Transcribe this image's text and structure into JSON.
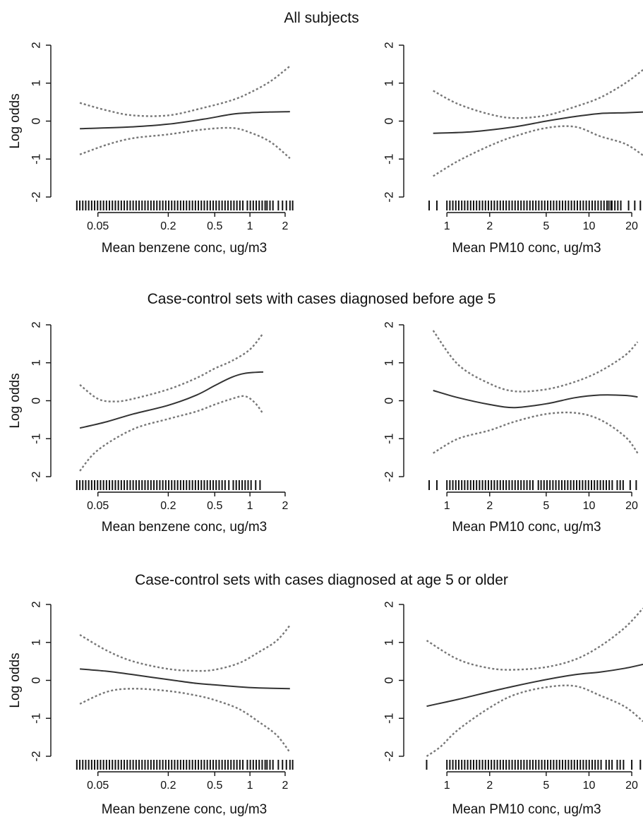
{
  "row_titles": [
    "All subjects",
    "Case-control sets with cases diagnosed before age 5",
    "Case-control sets with cases diagnosed at age 5 or older"
  ],
  "chart_data": [
    {
      "type": "line",
      "id": "p1",
      "xscale": "log",
      "xlim": [
        0.03,
        2.5
      ],
      "ylim": [
        -2,
        2
      ],
      "xlabel": "Mean benzene conc, ug/m3",
      "ylabel": "Log odds",
      "xticks": [
        0.05,
        0.2,
        0.5,
        1,
        2
      ],
      "xticklabels": [
        "0.05",
        "0.2",
        "0.5",
        "1",
        "2"
      ],
      "yticks": [
        -2,
        -1,
        0,
        1,
        2
      ],
      "yticklabels": [
        "-2",
        "-1",
        "0",
        "1",
        "2"
      ],
      "series": [
        {
          "role": "estimate",
          "x": [
            0.035,
            0.1,
            0.2,
            0.4,
            0.7,
            1.0,
            1.5,
            2.2
          ],
          "y": [
            -0.2,
            -0.15,
            -0.08,
            0.05,
            0.18,
            0.22,
            0.24,
            0.25
          ]
        },
        {
          "role": "upper",
          "x": [
            0.035,
            0.06,
            0.1,
            0.2,
            0.4,
            0.7,
            1.0,
            1.5,
            2.2
          ],
          "y": [
            0.48,
            0.28,
            0.15,
            0.15,
            0.35,
            0.55,
            0.75,
            1.05,
            1.45
          ]
        },
        {
          "role": "lower",
          "x": [
            0.035,
            0.06,
            0.1,
            0.2,
            0.4,
            0.7,
            1.0,
            1.5,
            2.2
          ],
          "y": [
            -0.88,
            -0.62,
            -0.45,
            -0.35,
            -0.22,
            -0.18,
            -0.3,
            -0.55,
            -0.98
          ]
        }
      ],
      "rug": {
        "segments": [
          [
            0.033,
            0.9
          ],
          [
            0.95,
            1.35
          ],
          [
            1.4,
            1.65
          ]
        ],
        "ticks": [
          1.75,
          1.9,
          2.05,
          2.2,
          2.32
        ]
      }
    },
    {
      "type": "line",
      "id": "p2",
      "xscale": "log",
      "xlim": [
        0.7,
        24
      ],
      "ylim": [
        -2,
        2
      ],
      "xlabel": "Mean PM10 conc, ug/m3",
      "ylabel": "",
      "xticks": [
        1,
        2,
        5,
        10,
        20
      ],
      "xticklabels": [
        "1",
        "2",
        "5",
        "10",
        "20"
      ],
      "yticks": [
        -2,
        -1,
        0,
        1,
        2
      ],
      "yticklabels": [
        "-2",
        "-1",
        "0",
        "1",
        "2"
      ],
      "series": [
        {
          "role": "estimate",
          "x": [
            0.8,
            1.5,
            3,
            5,
            8,
            12,
            18,
            24
          ],
          "y": [
            -0.32,
            -0.28,
            -0.15,
            0.0,
            0.12,
            0.2,
            0.22,
            0.24
          ]
        },
        {
          "role": "upper",
          "x": [
            0.8,
            1.2,
            2,
            3,
            5,
            8,
            12,
            18,
            24
          ],
          "y": [
            0.8,
            0.45,
            0.18,
            0.08,
            0.15,
            0.38,
            0.62,
            1.0,
            1.35
          ]
        },
        {
          "role": "lower",
          "x": [
            0.8,
            1.2,
            2,
            3,
            5,
            8,
            12,
            18,
            24
          ],
          "y": [
            -1.45,
            -1.05,
            -0.65,
            -0.4,
            -0.18,
            -0.15,
            -0.4,
            -0.6,
            -0.9
          ]
        }
      ],
      "rug": {
        "segments": [
          [
            1.0,
            13.5
          ],
          [
            14.5,
            17
          ]
        ],
        "ticks": [
          0.75,
          0.85,
          13.8,
          14.3,
          19,
          21,
          23
        ]
      }
    },
    {
      "type": "line",
      "id": "p3",
      "xscale": "log",
      "xlim": [
        0.03,
        2.5
      ],
      "ylim": [
        -2,
        2
      ],
      "xlabel": "Mean benzene conc, ug/m3",
      "ylabel": "Log odds",
      "xticks": [
        0.05,
        0.2,
        0.5,
        1,
        2
      ],
      "xticklabels": [
        "0.05",
        "0.2",
        "0.5",
        "1",
        "2"
      ],
      "yticks": [
        -2,
        -1,
        0,
        1,
        2
      ],
      "yticklabels": [
        "-2",
        "-1",
        "0",
        "1",
        "2"
      ],
      "series": [
        {
          "role": "estimate",
          "x": [
            0.035,
            0.06,
            0.1,
            0.2,
            0.35,
            0.5,
            0.7,
            0.9,
            1.3
          ],
          "y": [
            -0.72,
            -0.55,
            -0.35,
            -0.12,
            0.15,
            0.4,
            0.62,
            0.72,
            0.76
          ]
        },
        {
          "role": "upper",
          "x": [
            0.035,
            0.05,
            0.07,
            0.1,
            0.2,
            0.35,
            0.5,
            0.7,
            1.0,
            1.3
          ],
          "y": [
            0.42,
            0.05,
            -0.02,
            0.05,
            0.3,
            0.6,
            0.85,
            1.05,
            1.35,
            1.78
          ]
        },
        {
          "role": "lower",
          "x": [
            0.035,
            0.05,
            0.1,
            0.2,
            0.35,
            0.5,
            0.7,
            0.9,
            1.1,
            1.3
          ],
          "y": [
            -1.85,
            -1.3,
            -0.75,
            -0.48,
            -0.28,
            -0.1,
            0.05,
            0.12,
            -0.05,
            -0.35
          ]
        }
      ],
      "rug": {
        "segments": [
          [
            0.033,
            0.62
          ],
          [
            0.72,
            1.05
          ]
        ],
        "ticks": [
          0.66,
          1.12,
          1.22
        ]
      }
    },
    {
      "type": "line",
      "id": "p4",
      "xscale": "log",
      "xlim": [
        0.7,
        24
      ],
      "ylim": [
        -2,
        2
      ],
      "xlabel": "Mean PM10 conc, ug/m3",
      "ylabel": "",
      "xticks": [
        1,
        2,
        5,
        10,
        20
      ],
      "xticklabels": [
        "1",
        "2",
        "5",
        "10",
        "20"
      ],
      "yticks": [
        -2,
        -1,
        0,
        1,
        2
      ],
      "yticklabels": [
        "-2",
        "-1",
        "0",
        "1",
        "2"
      ],
      "series": [
        {
          "role": "estimate",
          "x": [
            0.8,
            1.2,
            2,
            3,
            5,
            8,
            12,
            18,
            22
          ],
          "y": [
            0.27,
            0.08,
            -0.1,
            -0.18,
            -0.08,
            0.08,
            0.15,
            0.14,
            0.1
          ]
        },
        {
          "role": "upper",
          "x": [
            0.8,
            1.2,
            2,
            3,
            5,
            8,
            12,
            18,
            22
          ],
          "y": [
            1.85,
            0.95,
            0.45,
            0.25,
            0.3,
            0.5,
            0.78,
            1.2,
            1.55
          ]
        },
        {
          "role": "lower",
          "x": [
            0.8,
            1.2,
            2,
            3,
            5,
            8,
            12,
            18,
            22
          ],
          "y": [
            -1.38,
            -1.0,
            -0.78,
            -0.55,
            -0.35,
            -0.32,
            -0.5,
            -0.95,
            -1.38
          ]
        }
      ],
      "rug": {
        "segments": [
          [
            1.0,
            4.2
          ],
          [
            4.6,
            15
          ],
          [
            15.8,
            17.5
          ]
        ],
        "ticks": [
          0.75,
          0.85,
          4.4,
          19.5,
          21.5
        ]
      }
    },
    {
      "type": "line",
      "id": "p5",
      "xscale": "log",
      "xlim": [
        0.03,
        2.5
      ],
      "ylim": [
        -2,
        2
      ],
      "xlabel": "Mean benzene conc, ug/m3",
      "ylabel": "Log odds",
      "xticks": [
        0.05,
        0.2,
        0.5,
        1,
        2
      ],
      "xticklabels": [
        "0.05",
        "0.2",
        "0.5",
        "1",
        "2"
      ],
      "yticks": [
        -2,
        -1,
        0,
        1,
        2
      ],
      "yticklabels": [
        "-2",
        "-1",
        "0",
        "1",
        "2"
      ],
      "series": [
        {
          "role": "estimate",
          "x": [
            0.035,
            0.06,
            0.1,
            0.2,
            0.35,
            0.5,
            0.8,
            1.2,
            2.2
          ],
          "y": [
            0.3,
            0.24,
            0.15,
            0.02,
            -0.08,
            -0.12,
            -0.17,
            -0.2,
            -0.22
          ]
        },
        {
          "role": "upper",
          "x": [
            0.035,
            0.06,
            0.1,
            0.2,
            0.35,
            0.5,
            0.8,
            1.2,
            1.7,
            2.2
          ],
          "y": [
            1.2,
            0.78,
            0.5,
            0.3,
            0.25,
            0.28,
            0.45,
            0.75,
            1.05,
            1.45
          ]
        },
        {
          "role": "lower",
          "x": [
            0.035,
            0.06,
            0.1,
            0.2,
            0.35,
            0.5,
            0.8,
            1.2,
            1.7,
            2.2
          ],
          "y": [
            -0.62,
            -0.3,
            -0.22,
            -0.28,
            -0.4,
            -0.52,
            -0.75,
            -1.1,
            -1.45,
            -1.9
          ]
        }
      ],
      "rug": {
        "segments": [
          [
            0.033,
            0.9
          ],
          [
            0.95,
            1.35
          ],
          [
            1.4,
            1.65
          ]
        ],
        "ticks": [
          1.75,
          1.9,
          2.05,
          2.2,
          2.32
        ]
      }
    },
    {
      "type": "line",
      "id": "p6",
      "xscale": "log",
      "xlim": [
        0.7,
        24
      ],
      "ylim": [
        -2,
        2
      ],
      "xlabel": "Mean PM10 conc, ug/m3",
      "ylabel": "",
      "xticks": [
        1,
        2,
        5,
        10,
        20
      ],
      "xticklabels": [
        "1",
        "2",
        "5",
        "10",
        "20"
      ],
      "yticks": [
        -2,
        -1,
        0,
        1,
        2
      ],
      "yticklabels": [
        "-2",
        "-1",
        "0",
        "1",
        "2"
      ],
      "series": [
        {
          "role": "estimate",
          "x": [
            0.72,
            1.2,
            2,
            3,
            5,
            8,
            12,
            18,
            24
          ],
          "y": [
            -0.68,
            -0.5,
            -0.3,
            -0.15,
            0.02,
            0.15,
            0.22,
            0.32,
            0.42
          ]
        },
        {
          "role": "upper",
          "x": [
            0.72,
            1.2,
            2,
            3,
            5,
            8,
            12,
            18,
            24
          ],
          "y": [
            1.05,
            0.55,
            0.32,
            0.28,
            0.35,
            0.55,
            0.9,
            1.4,
            1.9
          ]
        },
        {
          "role": "lower",
          "x": [
            0.72,
            0.9,
            1.2,
            2,
            3,
            5,
            8,
            12,
            18,
            24
          ],
          "y": [
            -2.0,
            -1.75,
            -1.3,
            -0.72,
            -0.38,
            -0.18,
            -0.15,
            -0.4,
            -0.7,
            -1.08
          ]
        }
      ],
      "rug": {
        "segments": [
          [
            1.0,
            12.5
          ],
          [
            13.2,
            15
          ],
          [
            15.8,
            16.8
          ]
        ],
        "ticks": [
          0.72,
          17.5,
          20,
          23
        ]
      }
    }
  ]
}
